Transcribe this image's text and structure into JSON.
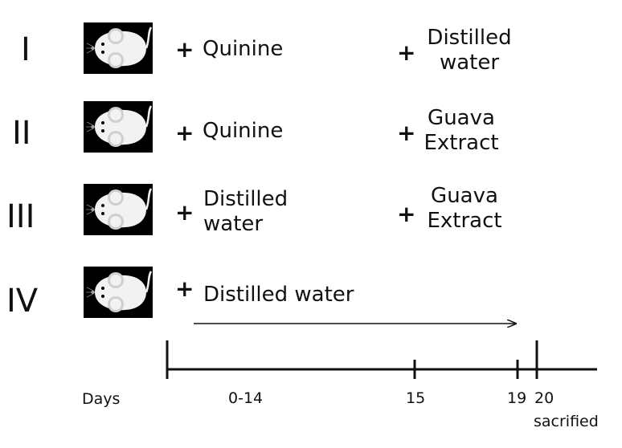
{
  "groups": [
    {
      "label": "I",
      "treatment_a": [
        "Quinine"
      ],
      "treatment_b": [
        "Distilled",
        "water"
      ]
    },
    {
      "label": "II",
      "treatment_a": [
        "Quinine"
      ],
      "treatment_b": [
        "Guava",
        "Extract"
      ]
    },
    {
      "label": "III",
      "treatment_a": [
        "Distilled",
        "water"
      ],
      "treatment_b": [
        "Guava",
        "Extract"
      ]
    },
    {
      "label": "IV",
      "treatment_a": [
        "Distilled water"
      ],
      "treatment_b": []
    }
  ],
  "plus_symbol": "+",
  "timeline": {
    "days_label": "Days",
    "period_label": "0-14",
    "day_15": "15",
    "day_19": "19",
    "day_20": "20",
    "end_note": "sacrified"
  },
  "icons": {
    "mouse": "mouse-icon",
    "arrow": "arrow-right-icon"
  },
  "colors": {
    "ink": "#111111",
    "mouse_bg": "#000000",
    "mouse_body": "#f2f2f2"
  }
}
